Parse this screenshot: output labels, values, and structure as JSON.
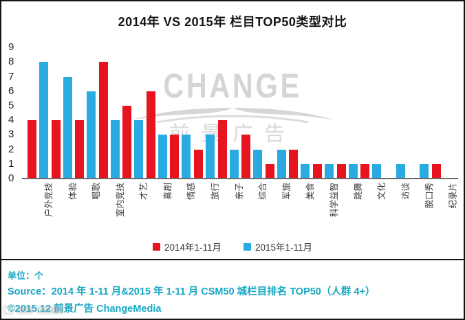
{
  "header": {
    "title": "2014年 VS 2015年 栏目TOP50类型对比"
  },
  "watermark": {
    "brand": "CHANGE",
    "subbrand": "前景广告"
  },
  "legend": {
    "items": [
      {
        "label": "2014年1-11月",
        "color": "#e7131e"
      },
      {
        "label": "2015年1-11月",
        "color": "#29abe2"
      }
    ]
  },
  "footer": {
    "unit": "单位：个",
    "source": "Source：2014 年 1-11 月&2015 年 1-11 月  CSM50 城栏目排名 TOP50（人群 4+）",
    "copyright": "©2015.12 前景广告  ChangeMedia"
  },
  "colors": {
    "bar_2014_red": "#e7131e",
    "bar_2015_blue": "#29abe2",
    "note_teal": "#17a7c4",
    "watermark_gray": "#d5d5d5"
  },
  "chart_data": {
    "type": "bar",
    "title": "2014年 VS 2015年 栏目TOP50类型对比",
    "unit": "个",
    "categories": [
      "户外竞技",
      "体验",
      "唱歌",
      "室内竞技",
      "才艺",
      "喜剧",
      "情感",
      "旅行",
      "亲子",
      "综合",
      "军旅",
      "美食",
      "科学益智",
      "跳舞",
      "文化",
      "访谈",
      "脱口秀",
      "纪录片"
    ],
    "series": [
      {
        "name": "2014年1-11月",
        "color": "#e7131e",
        "values": [
          4,
          4,
          4,
          8,
          5,
          6,
          3,
          2,
          4,
          3,
          1,
          2,
          1,
          1,
          1,
          0,
          0,
          1
        ]
      },
      {
        "name": "2015年1-11月",
        "color": "#29abe2",
        "values": [
          8,
          7,
          6,
          4,
          4,
          3,
          3,
          3,
          2,
          2,
          2,
          1,
          1,
          1,
          1,
          1,
          1,
          0
        ]
      }
    ],
    "ylim": [
      0,
      9
    ],
    "yticks": [
      0,
      1,
      2,
      3,
      4,
      5,
      6,
      7,
      8,
      9
    ],
    "grid": false,
    "legend_position": "bottom",
    "x_tick_rotation": 90
  }
}
